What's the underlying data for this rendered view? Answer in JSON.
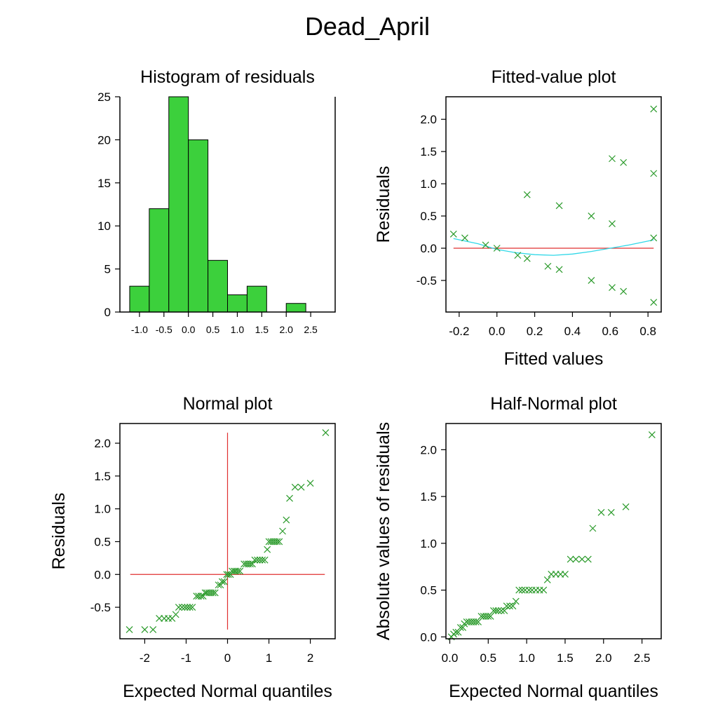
{
  "page_title": "Dead_April",
  "colors": {
    "bar_fill": "#3cd03c",
    "marker": "#2a9a2a",
    "reference_line": "#e03030",
    "smooth_line": "#30d8e8"
  },
  "chart_data": [
    {
      "type": "bar",
      "title": "Histogram of residuals",
      "xlabel": "",
      "ylabel": "",
      "bin_edges": [
        -1.2,
        -0.8,
        -0.4,
        0.0,
        0.4,
        0.8,
        1.2,
        1.6,
        2.0,
        2.4
      ],
      "values": [
        3,
        12,
        25,
        20,
        6,
        2,
        3,
        0,
        1
      ],
      "xlim": [
        -1.4,
        3.0
      ],
      "ylim": [
        0,
        25
      ],
      "xticks": [
        -1.0,
        -0.5,
        0.0,
        0.5,
        1.0,
        1.5,
        2.0,
        2.5
      ],
      "xtick_labels": [
        "-1.0",
        "-0.5",
        "0.0",
        "0.5",
        "1.0",
        "1.5",
        "2.0",
        "2.5"
      ],
      "yticks": [
        0,
        5,
        10,
        15,
        20,
        25
      ],
      "ytick_labels": [
        "0",
        "5",
        "10",
        "15",
        "20",
        "25"
      ]
    },
    {
      "type": "scatter",
      "title": "Fitted-value plot",
      "xlabel": "Fitted values",
      "ylabel": "Residuals",
      "xlim": [
        -0.27,
        0.87
      ],
      "ylim": [
        -0.99,
        2.35
      ],
      "xticks": [
        -0.2,
        0.0,
        0.2,
        0.4,
        0.6,
        0.8
      ],
      "xtick_labels": [
        "-0.2",
        "0.0",
        "0.2",
        "0.4",
        "0.6",
        "0.8"
      ],
      "yticks": [
        -0.5,
        0.0,
        0.5,
        1.0,
        1.5,
        2.0
      ],
      "ytick_labels": [
        "-0.5",
        "0.0",
        "0.5",
        "1.0",
        "1.5",
        "2.0"
      ],
      "points": [
        [
          -0.23,
          0.22
        ],
        [
          -0.17,
          0.16
        ],
        [
          -0.06,
          0.05
        ],
        [
          0.0,
          0.0
        ],
        [
          0.11,
          -0.11
        ],
        [
          0.16,
          -0.16
        ],
        [
          0.16,
          0.83
        ],
        [
          0.27,
          -0.28
        ],
        [
          0.33,
          -0.33
        ],
        [
          0.33,
          0.66
        ],
        [
          0.5,
          0.5
        ],
        [
          0.5,
          -0.5
        ],
        [
          0.61,
          1.39
        ],
        [
          0.61,
          0.38
        ],
        [
          0.61,
          -0.61
        ],
        [
          0.67,
          1.33
        ],
        [
          0.67,
          -0.67
        ],
        [
          0.83,
          2.16
        ],
        [
          0.83,
          1.16
        ],
        [
          0.83,
          0.16
        ],
        [
          0.83,
          -0.84
        ]
      ],
      "reference_line": {
        "y": 0.0,
        "x_from": -0.23,
        "x_to": 0.83
      },
      "smooth_line": [
        [
          -0.23,
          0.15
        ],
        [
          -0.1,
          0.07
        ],
        [
          0.0,
          -0.02
        ],
        [
          0.1,
          -0.07
        ],
        [
          0.2,
          -0.1
        ],
        [
          0.3,
          -0.11
        ],
        [
          0.4,
          -0.09
        ],
        [
          0.5,
          -0.05
        ],
        [
          0.6,
          0.0
        ],
        [
          0.7,
          0.05
        ],
        [
          0.83,
          0.13
        ]
      ]
    },
    {
      "type": "scatter",
      "title": "Normal plot",
      "xlabel": "Expected Normal quantiles",
      "ylabel": "Residuals",
      "xlim": [
        -2.6,
        2.6
      ],
      "ylim": [
        -0.98,
        2.3
      ],
      "xticks": [
        -2,
        -1,
        0,
        1,
        2
      ],
      "xtick_labels": [
        "-2",
        "-1",
        "0",
        "1",
        "2"
      ],
      "yticks": [
        -0.5,
        0.0,
        0.5,
        1.0,
        1.5,
        2.0
      ],
      "ytick_labels": [
        "-0.5",
        "0.0",
        "0.5",
        "1.0",
        "1.5",
        "2.0"
      ],
      "points": [
        [
          -2.37,
          -0.84
        ],
        [
          -2.0,
          -0.84
        ],
        [
          -1.8,
          -0.84
        ],
        [
          -1.65,
          -0.67
        ],
        [
          -1.53,
          -0.67
        ],
        [
          -1.43,
          -0.67
        ],
        [
          -1.34,
          -0.67
        ],
        [
          -1.25,
          -0.61
        ],
        [
          -1.18,
          -0.5
        ],
        [
          -1.1,
          -0.5
        ],
        [
          -1.03,
          -0.5
        ],
        [
          -0.97,
          -0.5
        ],
        [
          -0.91,
          -0.5
        ],
        [
          -0.85,
          -0.5
        ],
        [
          -0.75,
          -0.33
        ],
        [
          -0.7,
          -0.33
        ],
        [
          -0.64,
          -0.33
        ],
        [
          -0.59,
          -0.33
        ],
        [
          -0.54,
          -0.28
        ],
        [
          -0.5,
          -0.28
        ],
        [
          -0.45,
          -0.28
        ],
        [
          -0.4,
          -0.28
        ],
        [
          -0.35,
          -0.28
        ],
        [
          -0.3,
          -0.28
        ],
        [
          -0.22,
          -0.16
        ],
        [
          -0.17,
          -0.16
        ],
        [
          -0.13,
          -0.11
        ],
        [
          -0.08,
          -0.11
        ],
        [
          -0.02,
          0.0
        ],
        [
          0.02,
          0.0
        ],
        [
          0.07,
          0.0
        ],
        [
          0.11,
          0.05
        ],
        [
          0.16,
          0.05
        ],
        [
          0.2,
          0.05
        ],
        [
          0.25,
          0.05
        ],
        [
          0.3,
          0.05
        ],
        [
          0.4,
          0.16
        ],
        [
          0.45,
          0.16
        ],
        [
          0.5,
          0.16
        ],
        [
          0.55,
          0.16
        ],
        [
          0.6,
          0.16
        ],
        [
          0.66,
          0.22
        ],
        [
          0.72,
          0.22
        ],
        [
          0.78,
          0.22
        ],
        [
          0.84,
          0.22
        ],
        [
          0.9,
          0.22
        ],
        [
          0.96,
          0.38
        ],
        [
          1.0,
          0.5
        ],
        [
          1.05,
          0.5
        ],
        [
          1.1,
          0.5
        ],
        [
          1.15,
          0.5
        ],
        [
          1.2,
          0.5
        ],
        [
          1.25,
          0.5
        ],
        [
          1.33,
          0.66
        ],
        [
          1.42,
          0.83
        ],
        [
          1.5,
          1.16
        ],
        [
          1.63,
          1.33
        ],
        [
          1.78,
          1.33
        ],
        [
          2.0,
          1.39
        ],
        [
          2.37,
          2.16
        ]
      ],
      "reference_lines": {
        "horizontal": {
          "y": 0.0,
          "x_from": -2.35,
          "x_to": 2.35
        },
        "vertical": {
          "x": 0.0,
          "y_from": -0.84,
          "y_to": 2.16
        }
      }
    },
    {
      "type": "scatter",
      "title": "Half-Normal plot",
      "xlabel": "Expected Normal quantiles",
      "ylabel": "Absolute values of residuals",
      "xlim": [
        -0.05,
        2.75
      ],
      "ylim": [
        -0.02,
        2.28
      ],
      "xticks": [
        0.0,
        0.5,
        1.0,
        1.5,
        2.0,
        2.5
      ],
      "xtick_labels": [
        "0.0",
        "0.5",
        "1.0",
        "1.5",
        "2.0",
        "2.5"
      ],
      "yticks": [
        0.0,
        0.5,
        1.0,
        1.5,
        2.0
      ],
      "ytick_labels": [
        "0.0",
        "0.5",
        "1.0",
        "1.5",
        "2.0"
      ],
      "points": [
        [
          0.02,
          0.0
        ],
        [
          0.05,
          0.03
        ],
        [
          0.08,
          0.05
        ],
        [
          0.11,
          0.05
        ],
        [
          0.14,
          0.1
        ],
        [
          0.17,
          0.1
        ],
        [
          0.19,
          0.14
        ],
        [
          0.22,
          0.16
        ],
        [
          0.25,
          0.16
        ],
        [
          0.28,
          0.16
        ],
        [
          0.31,
          0.16
        ],
        [
          0.34,
          0.16
        ],
        [
          0.37,
          0.16
        ],
        [
          0.41,
          0.22
        ],
        [
          0.44,
          0.22
        ],
        [
          0.47,
          0.22
        ],
        [
          0.5,
          0.22
        ],
        [
          0.53,
          0.22
        ],
        [
          0.57,
          0.28
        ],
        [
          0.6,
          0.28
        ],
        [
          0.63,
          0.28
        ],
        [
          0.67,
          0.28
        ],
        [
          0.71,
          0.28
        ],
        [
          0.74,
          0.33
        ],
        [
          0.78,
          0.33
        ],
        [
          0.82,
          0.33
        ],
        [
          0.86,
          0.38
        ],
        [
          0.9,
          0.5
        ],
        [
          0.94,
          0.5
        ],
        [
          0.98,
          0.5
        ],
        [
          1.03,
          0.5
        ],
        [
          1.07,
          0.5
        ],
        [
          1.12,
          0.5
        ],
        [
          1.17,
          0.5
        ],
        [
          1.22,
          0.5
        ],
        [
          1.27,
          0.61
        ],
        [
          1.32,
          0.67
        ],
        [
          1.38,
          0.67
        ],
        [
          1.44,
          0.67
        ],
        [
          1.5,
          0.67
        ],
        [
          1.57,
          0.83
        ],
        [
          1.64,
          0.83
        ],
        [
          1.72,
          0.83
        ],
        [
          1.8,
          0.83
        ],
        [
          1.86,
          1.16
        ],
        [
          1.97,
          1.33
        ],
        [
          2.1,
          1.33
        ],
        [
          2.29,
          1.39
        ],
        [
          2.63,
          2.16
        ]
      ]
    }
  ]
}
